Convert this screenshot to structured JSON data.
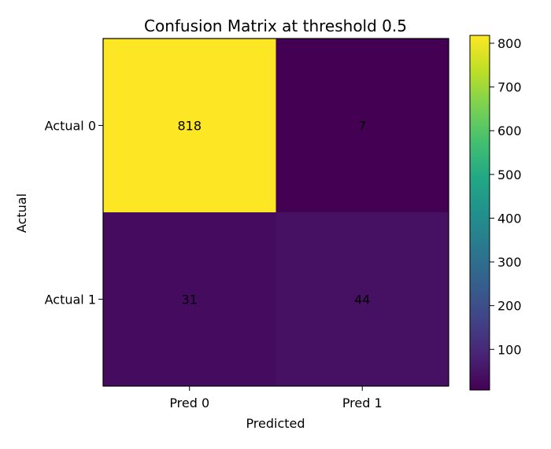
{
  "chart_data": {
    "type": "heatmap",
    "title": "Confusion Matrix at threshold 0.5",
    "xlabel": "Predicted",
    "ylabel": "Actual",
    "x_categories": [
      "Pred 0",
      "Pred 1"
    ],
    "y_categories": [
      "Actual 0",
      "Actual 1"
    ],
    "values": [
      [
        818,
        7
      ],
      [
        31,
        44
      ]
    ],
    "colormap": "viridis",
    "value_range": [
      7,
      818
    ],
    "colorbar_ticks": [
      100,
      200,
      300,
      400,
      500,
      600,
      700,
      800
    ],
    "grid": false
  }
}
